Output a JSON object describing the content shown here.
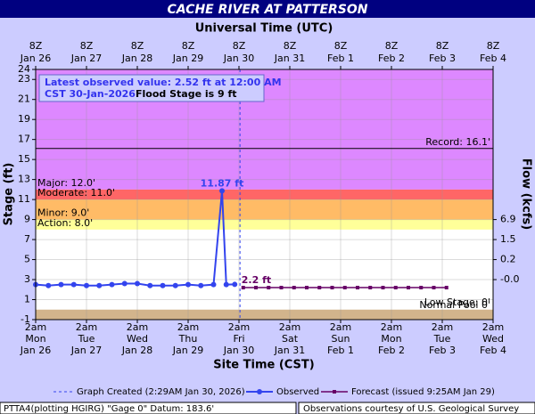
{
  "chart_data": {
    "type": "hydrograph",
    "title": "CACHE RIVER AT PATTERSON",
    "top_axis_label": "Universal Time (UTC)",
    "x_label": "Site Time (CST)",
    "y_label": "Stage (ft)",
    "y2_label": "Flow (kcfs)",
    "ylim": [
      -1,
      24
    ],
    "yticks": [
      -1,
      1,
      3,
      5,
      7,
      9,
      11,
      13,
      15,
      17,
      19,
      21,
      23,
      24
    ],
    "flow_ticks": [
      {
        "stage": 9,
        "label": "6.9"
      },
      {
        "stage": 7,
        "label": "1.5"
      },
      {
        "stage": 5,
        "label": "0.2"
      },
      {
        "stage": 3,
        "label": "-0.0"
      }
    ],
    "xlim": [
      "2026-01-26T02:00",
      "2026-02-04T02:00"
    ],
    "time_ticks": [
      "2026-01-26T02:00",
      "2026-01-27T02:00",
      "2026-01-28T02:00",
      "2026-01-29T02:00",
      "2026-01-30T02:00",
      "2026-01-31T02:00",
      "2026-02-01T02:00",
      "2026-02-02T02:00",
      "2026-02-03T02:00",
      "2026-02-04T02:00"
    ],
    "utc_labels": [
      [
        "8Z",
        "Jan 26"
      ],
      [
        "8Z",
        "Jan 27"
      ],
      [
        "8Z",
        "Jan 28"
      ],
      [
        "8Z",
        "Jan 29"
      ],
      [
        "8Z",
        "Jan 30"
      ],
      [
        "8Z",
        "Jan 31"
      ],
      [
        "8Z",
        "Feb 1"
      ],
      [
        "8Z",
        "Feb 2"
      ],
      [
        "8Z",
        "Feb 3"
      ],
      [
        "8Z",
        "Feb 4"
      ]
    ],
    "cst_labels": [
      [
        "2am",
        "Mon",
        "Jan 26"
      ],
      [
        "2am",
        "Tue",
        "Jan 27"
      ],
      [
        "2am",
        "Wed",
        "Jan 28"
      ],
      [
        "2am",
        "Thu",
        "Jan 29"
      ],
      [
        "2am",
        "Fri",
        "Jan 30"
      ],
      [
        "2am",
        "Sat",
        "Jan 31"
      ],
      [
        "2am",
        "Sun",
        "Feb 1"
      ],
      [
        "2am",
        "Mon",
        "Feb 2"
      ],
      [
        "2am",
        "Tue",
        "Feb 3"
      ],
      [
        "2am",
        "Wed",
        "Feb 4"
      ]
    ],
    "bands": [
      {
        "from": 12,
        "to": 24,
        "color": "#dd88ff"
      },
      {
        "from": 11,
        "to": 12,
        "color": "#ff6666"
      },
      {
        "from": 9,
        "to": 11,
        "color": "#ffbb66"
      },
      {
        "from": 8,
        "to": 9,
        "color": "#ffff99"
      },
      {
        "from": -1,
        "to": 0,
        "color": "#d2b48c"
      }
    ],
    "levels": [
      {
        "value": 16.1,
        "label": "Record: 16.1'",
        "side": "right"
      },
      {
        "value": 12,
        "label": "Major: 12.0'",
        "side": "left"
      },
      {
        "value": 11,
        "label": "Moderate: 11.0'",
        "side": "left"
      },
      {
        "value": 9,
        "label": "Minor: 9.0'",
        "side": "left"
      },
      {
        "value": 8,
        "label": "Action: 8.0'",
        "side": "left"
      },
      {
        "value": 0,
        "label": "Low Stage: 0'",
        "side": "right"
      },
      {
        "value": 0,
        "label": "Normal Pool 0'",
        "side": "right"
      }
    ],
    "info_box": [
      "Latest observed value: 2.52 ft at 12:00 AM",
      "CST 30-Jan-2026.",
      "Flood Stage is 9 ft"
    ],
    "created": "2026-01-30T02:29",
    "series": [
      {
        "name": "Observed",
        "color": "#3344ee",
        "x": [
          "2026-01-26T02:00",
          "2026-01-26T08:00",
          "2026-01-26T14:00",
          "2026-01-26T20:00",
          "2026-01-27T02:00",
          "2026-01-27T08:00",
          "2026-01-27T14:00",
          "2026-01-27T20:00",
          "2026-01-28T02:00",
          "2026-01-28T08:00",
          "2026-01-28T14:00",
          "2026-01-28T20:00",
          "2026-01-29T02:00",
          "2026-01-29T08:00",
          "2026-01-29T14:00",
          "2026-01-29T18:00",
          "2026-01-29T20:00",
          "2026-01-30T00:00"
        ],
        "values": [
          2.5,
          2.4,
          2.5,
          2.5,
          2.4,
          2.4,
          2.5,
          2.6,
          2.6,
          2.4,
          2.4,
          2.4,
          2.5,
          2.4,
          2.5,
          11.87,
          2.5,
          2.52
        ],
        "peak_label": "11.87 ft",
        "peak_index": 15
      },
      {
        "name": "Forecast (issued 9:25AM Jan 29)",
        "color": "#660066",
        "x": [
          "2026-01-30T04:00",
          "2026-01-30T10:00",
          "2026-01-30T16:00",
          "2026-01-30T22:00",
          "2026-01-31T04:00",
          "2026-01-31T10:00",
          "2026-01-31T16:00",
          "2026-01-31T22:00",
          "2026-02-01T04:00",
          "2026-02-01T10:00",
          "2026-02-01T16:00",
          "2026-02-01T22:00",
          "2026-02-02T04:00",
          "2026-02-02T10:00",
          "2026-02-02T16:00",
          "2026-02-02T22:00",
          "2026-02-03T04:00"
        ],
        "values": [
          2.2,
          2.2,
          2.2,
          2.2,
          2.2,
          2.2,
          2.2,
          2.2,
          2.2,
          2.2,
          2.2,
          2.2,
          2.2,
          2.2,
          2.2,
          2.2,
          2.2
        ],
        "first_label": "2.2 ft"
      }
    ],
    "legend_created": "Graph Created (2:29AM Jan 30, 2026)",
    "footer_left": "PTTA4(plotting HGIRG) \"Gage 0\" Datum: 183.6'",
    "footer_right": "Observations courtesy of U.S. Geological Survey"
  }
}
